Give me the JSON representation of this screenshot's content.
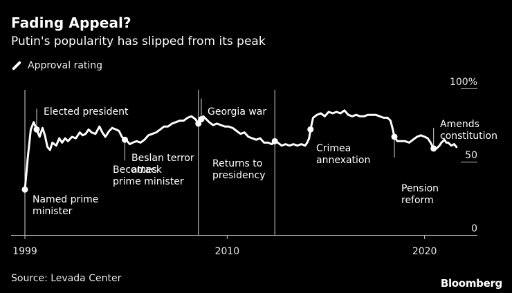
{
  "header": {
    "title": "Fading Appeal?",
    "subtitle": "Putin's popularity has slipped from its peak"
  },
  "legend": {
    "label": "Approval rating"
  },
  "footer": {
    "source": "Source: Levada Center",
    "brand": "Bloomberg"
  },
  "colors": {
    "background": "#000000",
    "line": "#ffffff",
    "axis": "#c8c8c8"
  },
  "chart_data": {
    "type": "line",
    "title": "Fading Appeal?",
    "subtitle": "Putin's popularity has slipped from its peak",
    "series": [
      {
        "name": "Approval rating",
        "points": [
          [
            1999.6,
            31
          ],
          [
            1999.75,
            53
          ],
          [
            1999.9,
            72
          ],
          [
            2000.05,
            77
          ],
          [
            2000.2,
            72
          ],
          [
            2000.35,
            67
          ],
          [
            2000.5,
            73
          ],
          [
            2000.62,
            68
          ],
          [
            2000.75,
            60
          ],
          [
            2000.88,
            58
          ],
          [
            2001.0,
            63
          ],
          [
            2001.2,
            61
          ],
          [
            2001.35,
            66
          ],
          [
            2001.5,
            63
          ],
          [
            2001.65,
            66
          ],
          [
            2001.8,
            64
          ],
          [
            2002.0,
            67
          ],
          [
            2002.2,
            66
          ],
          [
            2002.4,
            70
          ],
          [
            2002.55,
            68
          ],
          [
            2002.7,
            69
          ],
          [
            2002.85,
            72
          ],
          [
            2003.0,
            70
          ],
          [
            2003.2,
            69
          ],
          [
            2003.4,
            74
          ],
          [
            2003.55,
            70
          ],
          [
            2003.7,
            67
          ],
          [
            2003.9,
            71
          ],
          [
            2004.05,
            73
          ],
          [
            2004.25,
            72
          ],
          [
            2004.4,
            71
          ],
          [
            2004.55,
            67
          ],
          [
            2004.7,
            65
          ],
          [
            2004.82,
            64
          ],
          [
            2004.95,
            62
          ],
          [
            2005.1,
            63
          ],
          [
            2005.3,
            64
          ],
          [
            2005.5,
            63
          ],
          [
            2005.7,
            65
          ],
          [
            2005.9,
            68
          ],
          [
            2006.1,
            69
          ],
          [
            2006.3,
            70
          ],
          [
            2006.5,
            72
          ],
          [
            2006.7,
            74
          ],
          [
            2006.9,
            74
          ],
          [
            2007.1,
            76
          ],
          [
            2007.3,
            77
          ],
          [
            2007.5,
            78
          ],
          [
            2007.7,
            78
          ],
          [
            2007.9,
            80
          ],
          [
            2008.1,
            81
          ],
          [
            2008.3,
            79
          ],
          [
            2008.45,
            76
          ],
          [
            2008.6,
            79
          ],
          [
            2008.7,
            81
          ],
          [
            2008.85,
            79
          ],
          [
            2009.0,
            77
          ],
          [
            2009.2,
            75
          ],
          [
            2009.4,
            76
          ],
          [
            2009.6,
            75
          ],
          [
            2009.8,
            74
          ],
          [
            2010.0,
            74
          ],
          [
            2010.2,
            73
          ],
          [
            2010.4,
            71
          ],
          [
            2010.6,
            69
          ],
          [
            2010.8,
            70
          ],
          [
            2011.0,
            67
          ],
          [
            2011.2,
            66
          ],
          [
            2011.4,
            65
          ],
          [
            2011.6,
            66
          ],
          [
            2011.8,
            63
          ],
          [
            2012.0,
            63
          ],
          [
            2012.2,
            62
          ],
          [
            2012.35,
            64
          ],
          [
            2012.5,
            63
          ],
          [
            2012.7,
            61
          ],
          [
            2012.9,
            62
          ],
          [
            2013.1,
            61
          ],
          [
            2013.3,
            62
          ],
          [
            2013.5,
            61
          ],
          [
            2013.7,
            62
          ],
          [
            2013.9,
            61
          ],
          [
            2014.0,
            63
          ],
          [
            2014.1,
            66
          ],
          [
            2014.17,
            72
          ],
          [
            2014.3,
            80
          ],
          [
            2014.5,
            82
          ],
          [
            2014.7,
            83
          ],
          [
            2014.9,
            81
          ],
          [
            2015.1,
            84
          ],
          [
            2015.3,
            83
          ],
          [
            2015.5,
            84
          ],
          [
            2015.7,
            83
          ],
          [
            2015.9,
            85
          ],
          [
            2016.1,
            82
          ],
          [
            2016.3,
            81
          ],
          [
            2016.5,
            82
          ],
          [
            2016.7,
            81
          ],
          [
            2016.9,
            81
          ],
          [
            2017.1,
            82
          ],
          [
            2017.3,
            82
          ],
          [
            2017.5,
            82
          ],
          [
            2017.7,
            81
          ],
          [
            2017.9,
            80
          ],
          [
            2018.1,
            80
          ],
          [
            2018.25,
            78
          ],
          [
            2018.35,
            73
          ],
          [
            2018.45,
            67
          ],
          [
            2018.6,
            64
          ],
          [
            2018.8,
            64
          ],
          [
            2019.0,
            64
          ],
          [
            2019.2,
            63
          ],
          [
            2019.4,
            65
          ],
          [
            2019.6,
            67
          ],
          [
            2019.8,
            68
          ],
          [
            2020.0,
            67
          ],
          [
            2020.15,
            66
          ],
          [
            2020.3,
            63
          ],
          [
            2020.45,
            59
          ],
          [
            2020.6,
            59
          ],
          [
            2020.75,
            61
          ],
          [
            2020.85,
            63
          ],
          [
            2021.0,
            65
          ],
          [
            2021.1,
            63
          ],
          [
            2021.2,
            63
          ],
          [
            2021.35,
            61
          ],
          [
            2021.5,
            62
          ],
          [
            2021.62,
            60
          ]
        ]
      }
    ],
    "y_axis": {
      "range": [
        0,
        100
      ],
      "ticks": [
        {
          "value": 100,
          "label": "100%"
        },
        {
          "value": 50,
          "label": "50"
        },
        {
          "value": 0,
          "label": "0"
        }
      ]
    },
    "x_axis": {
      "range": [
        1999,
        2022
      ],
      "ticks": [
        {
          "value": 1999.6,
          "label": "1999"
        },
        {
          "value": 2009.92,
          "label": "2010"
        },
        {
          "value": 2019.99,
          "label": "2020"
        }
      ]
    },
    "annotations": [
      {
        "id": "named-pm",
        "x": 1999.6,
        "y": 31,
        "label": [
          "Named prime",
          "minister"
        ],
        "line_to": "axis-full"
      },
      {
        "id": "elected",
        "x": 2000.2,
        "y": 72,
        "label": [
          "Elected president"
        ],
        "line_to": "above"
      },
      {
        "id": "beslan",
        "x": 2004.7,
        "y": 65,
        "label": [
          "Beslan terror",
          "attack"
        ],
        "line_to": "below"
      },
      {
        "id": "becomes-pm",
        "x": 2008.45,
        "y": 76,
        "label": [
          "Becomes",
          "prime minister"
        ],
        "line_to": "axis-full"
      },
      {
        "id": "georgia",
        "x": 2008.6,
        "y": 79,
        "label": [
          "Georgia war"
        ],
        "line_to": "above"
      },
      {
        "id": "returns",
        "x": 2012.35,
        "y": 64,
        "label": [
          "Returns to",
          "presidency"
        ],
        "line_to": "axis-full"
      },
      {
        "id": "crimea",
        "x": 2014.17,
        "y": 72,
        "label": [
          "Crimea",
          "annexation"
        ],
        "line_to": "none"
      },
      {
        "id": "pension",
        "x": 2018.45,
        "y": 67,
        "label": [
          "Pension",
          "reform"
        ],
        "line_to": "below"
      },
      {
        "id": "constitution",
        "x": 2020.45,
        "y": 59,
        "label": [
          "Amends",
          "constitution"
        ],
        "line_to": "above"
      }
    ]
  }
}
